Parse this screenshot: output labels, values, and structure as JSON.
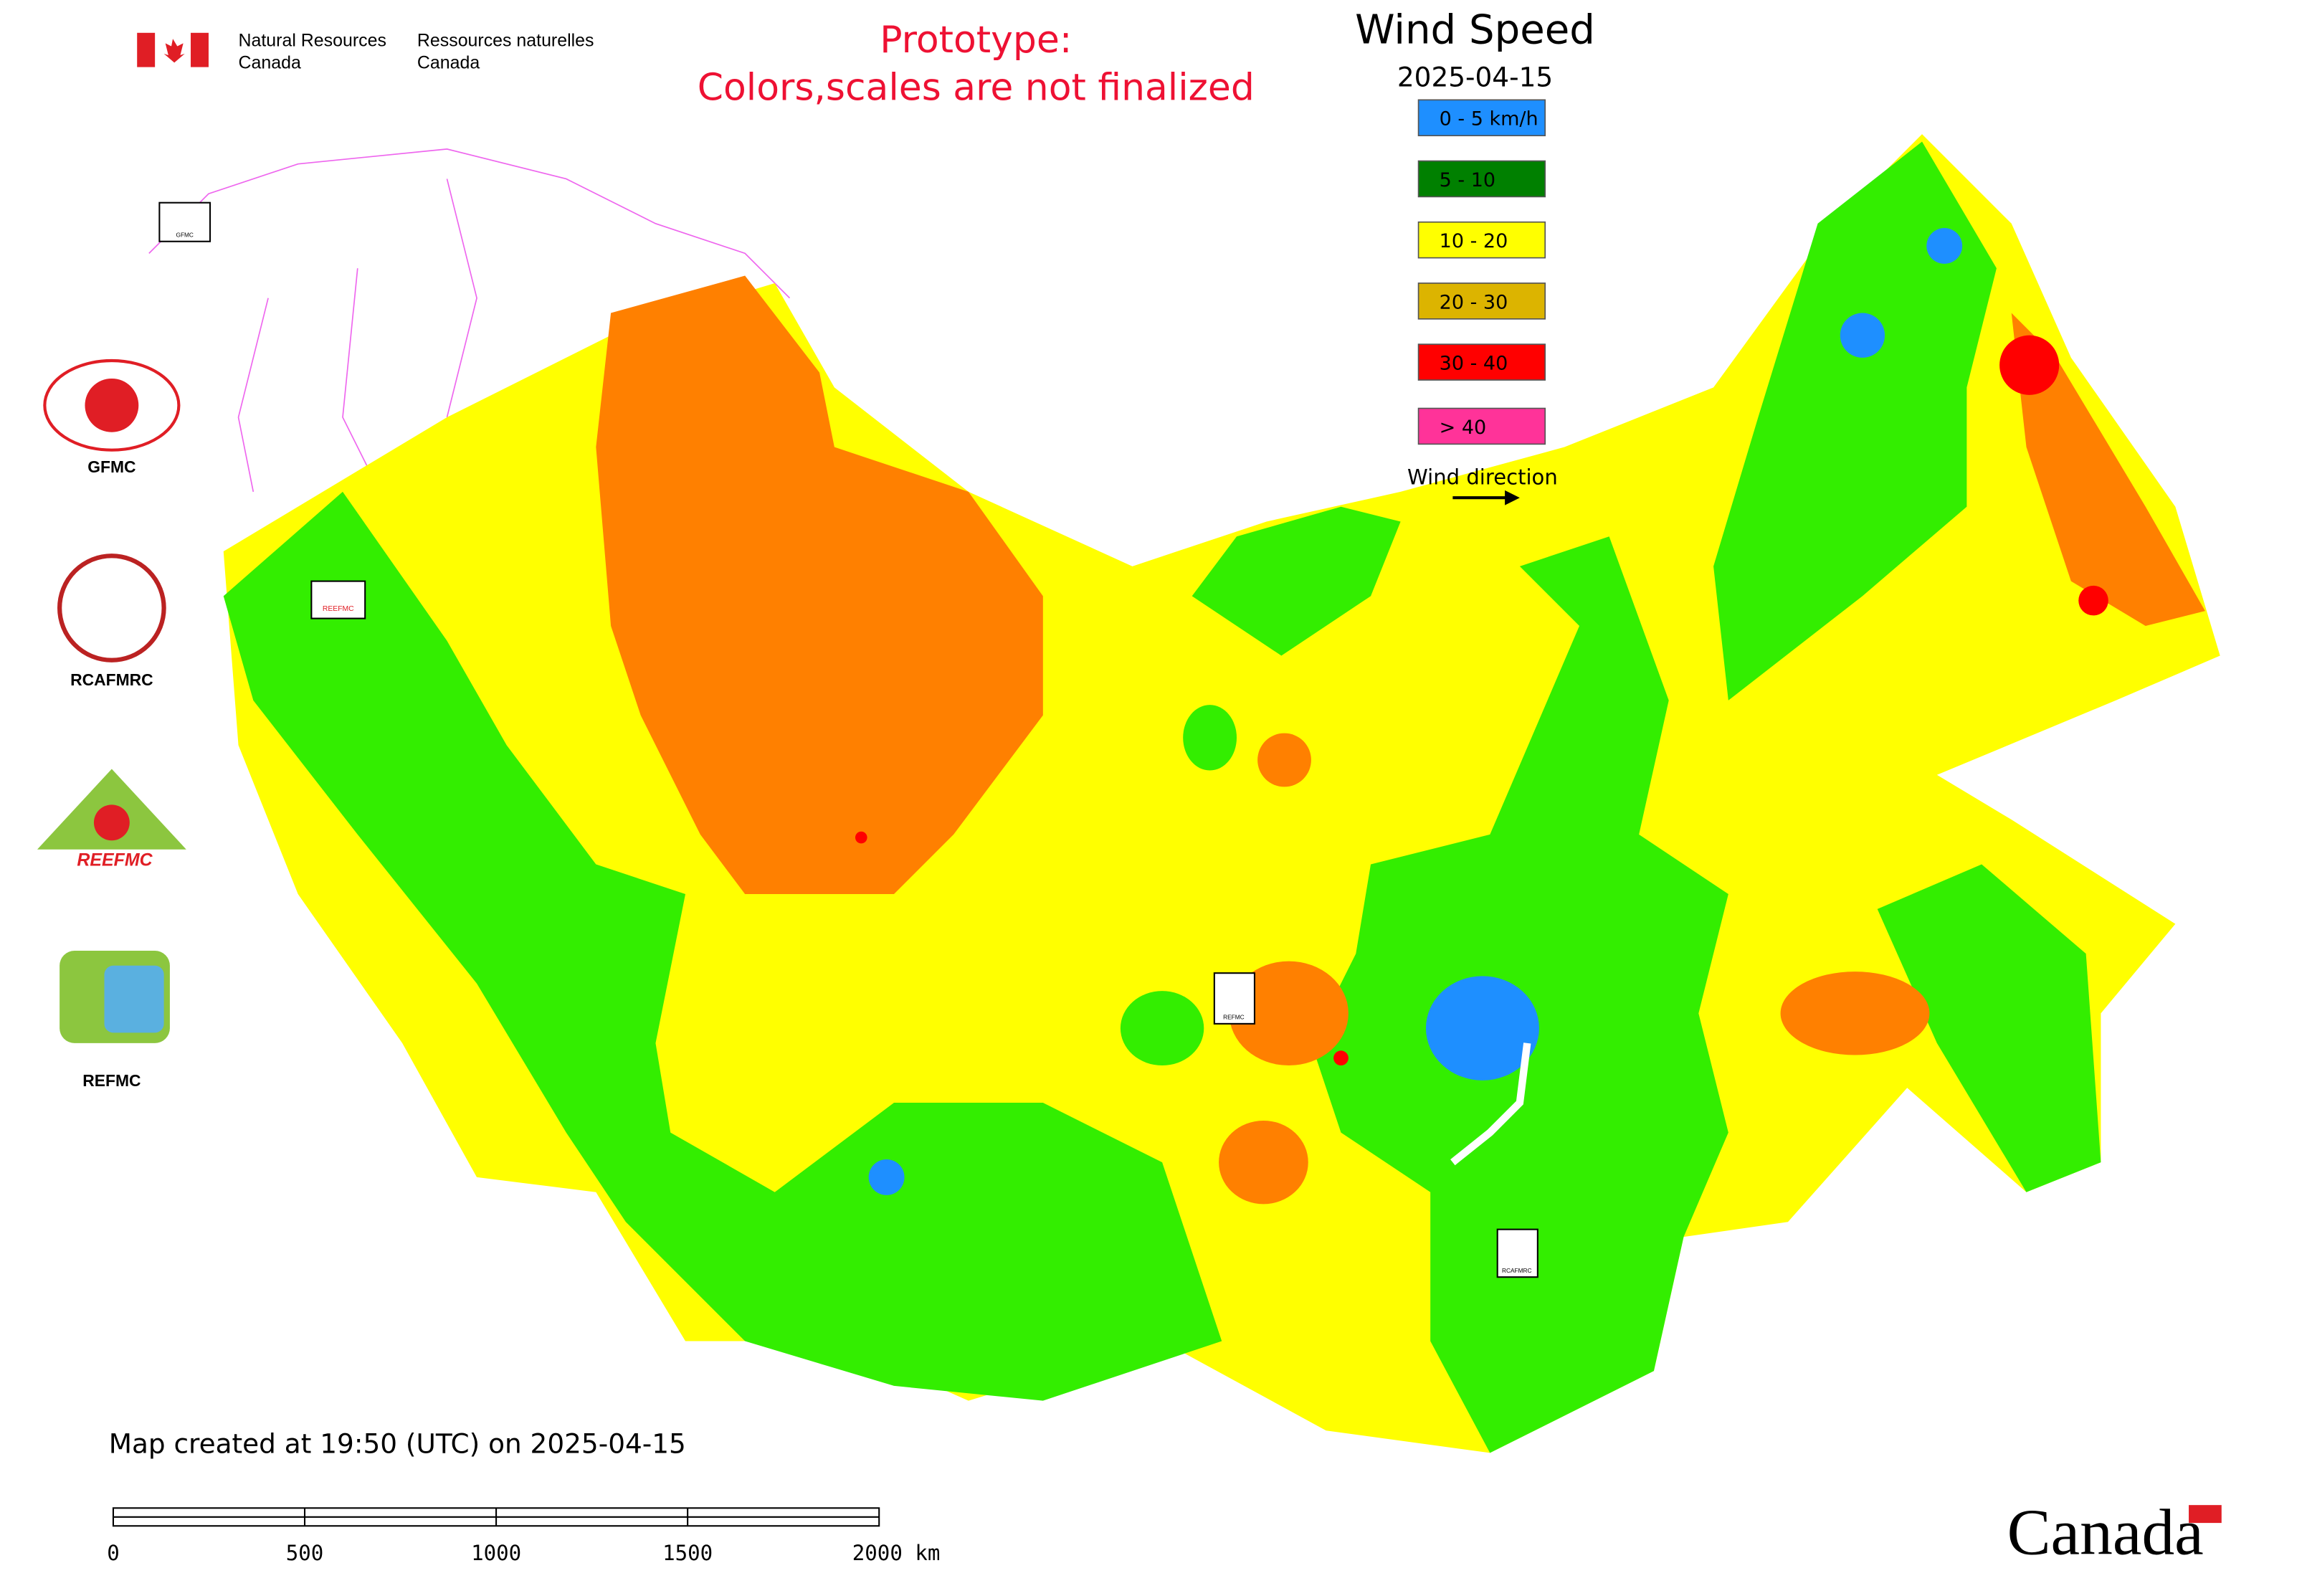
{
  "header": {
    "agency_en": [
      "Natural Resources",
      "Canada"
    ],
    "agency_fr": [
      "Ressources naturelles",
      "Canada"
    ],
    "notice": [
      "Prototype:",
      "Colors,scales are not finalized"
    ]
  },
  "legend": {
    "title": "Wind Speed",
    "date": "2025-04-15",
    "items": [
      {
        "label": "0 - 5 km/h",
        "color": "#1e8fff"
      },
      {
        "label": "5 - 10",
        "color": "#008000"
      },
      {
        "label": "10 - 20",
        "color": "#ffff00"
      },
      {
        "label": "20 - 30",
        "color": "#dcb400"
      },
      {
        "label": "30 - 40",
        "color": "#ff0000"
      },
      {
        "label": "> 40",
        "color": "#ff3399"
      }
    ],
    "direction_label": "Wind direction"
  },
  "logos": [
    "GFMC",
    "RCAFMRC",
    "REEFMC",
    "REFMC"
  ],
  "map_markers": [
    "GFMC",
    "REEFMC",
    "REFMC",
    "RCAFMRC"
  ],
  "footer": {
    "created": "Map created at 19:50 (UTC) on 2025-04-15",
    "scale_labels": [
      "0",
      "500",
      "1000",
      "1500",
      "2000 km"
    ],
    "wordmark": "Canada"
  }
}
